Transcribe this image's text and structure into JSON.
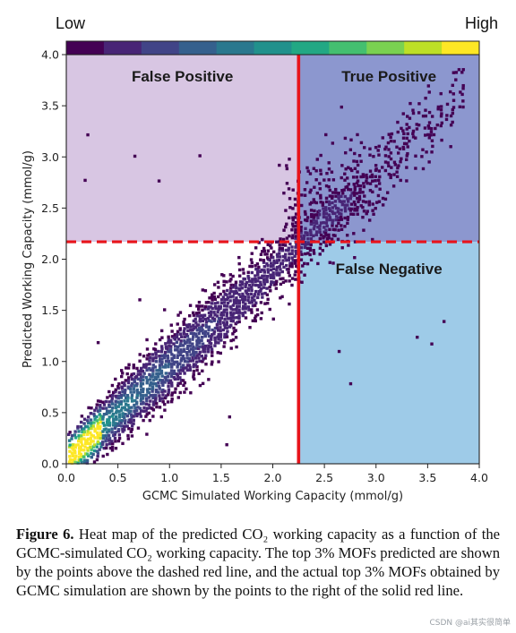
{
  "chart_data": {
    "type": "heatmap",
    "title": "",
    "xlabel": "GCMC Simulated Working Capacity (mmol/g)",
    "ylabel": "Predicted Working Capacity (mmol/g)",
    "xlim": [
      0.0,
      4.0
    ],
    "ylim": [
      0.0,
      4.0
    ],
    "x_ticks": [
      "0.0",
      "0.5",
      "1.0",
      "1.5",
      "2.0",
      "2.5",
      "3.0",
      "3.5",
      "4.0"
    ],
    "y_ticks": [
      "0.0",
      "0.5",
      "1.0",
      "1.5",
      "2.0",
      "2.5",
      "3.0",
      "3.5",
      "4.0"
    ],
    "colorbar": {
      "low_label": "Low",
      "high_label": "High",
      "colors": [
        "#440154",
        "#482576",
        "#414487",
        "#35608d",
        "#2a788e",
        "#21918c",
        "#22a884",
        "#44bf70",
        "#7ad151",
        "#bddf26",
        "#fde725"
      ]
    },
    "thresholds": {
      "x_solid": 2.25,
      "y_dashed": 2.17,
      "line_color": "#e8141b"
    },
    "regions": [
      {
        "label": "False Positive",
        "x_range": [
          0.0,
          2.25
        ],
        "y_range": [
          2.17,
          4.0
        ],
        "color": "#d8c6e3"
      },
      {
        "label": "True Positive",
        "x_range": [
          2.25,
          4.0
        ],
        "y_range": [
          2.17,
          4.0
        ],
        "color": "#8c97cf"
      },
      {
        "label": "False Negative",
        "x_range": [
          2.25,
          4.0
        ],
        "y_range": [
          0.0,
          2.17
        ],
        "color": "#9ecbe8"
      }
    ],
    "density_model": {
      "trend_slope": 0.93,
      "trend_intercept": 0.03,
      "spread": 0.16,
      "peak_x": 0.12
    }
  },
  "caption": {
    "lead": "Figure 6.",
    "text": "Heat map of the predicted CO₂ working capacity as a function of the GCMC-simulated CO₂ working capacity. The top 3% MOFs predicted are shown by the points above the dashed red line, and the actual top 3% MOFs obtained by GCMC simulation are shown by the points to the right of the solid red line."
  },
  "watermark": "CSDN @ai其实很简单"
}
